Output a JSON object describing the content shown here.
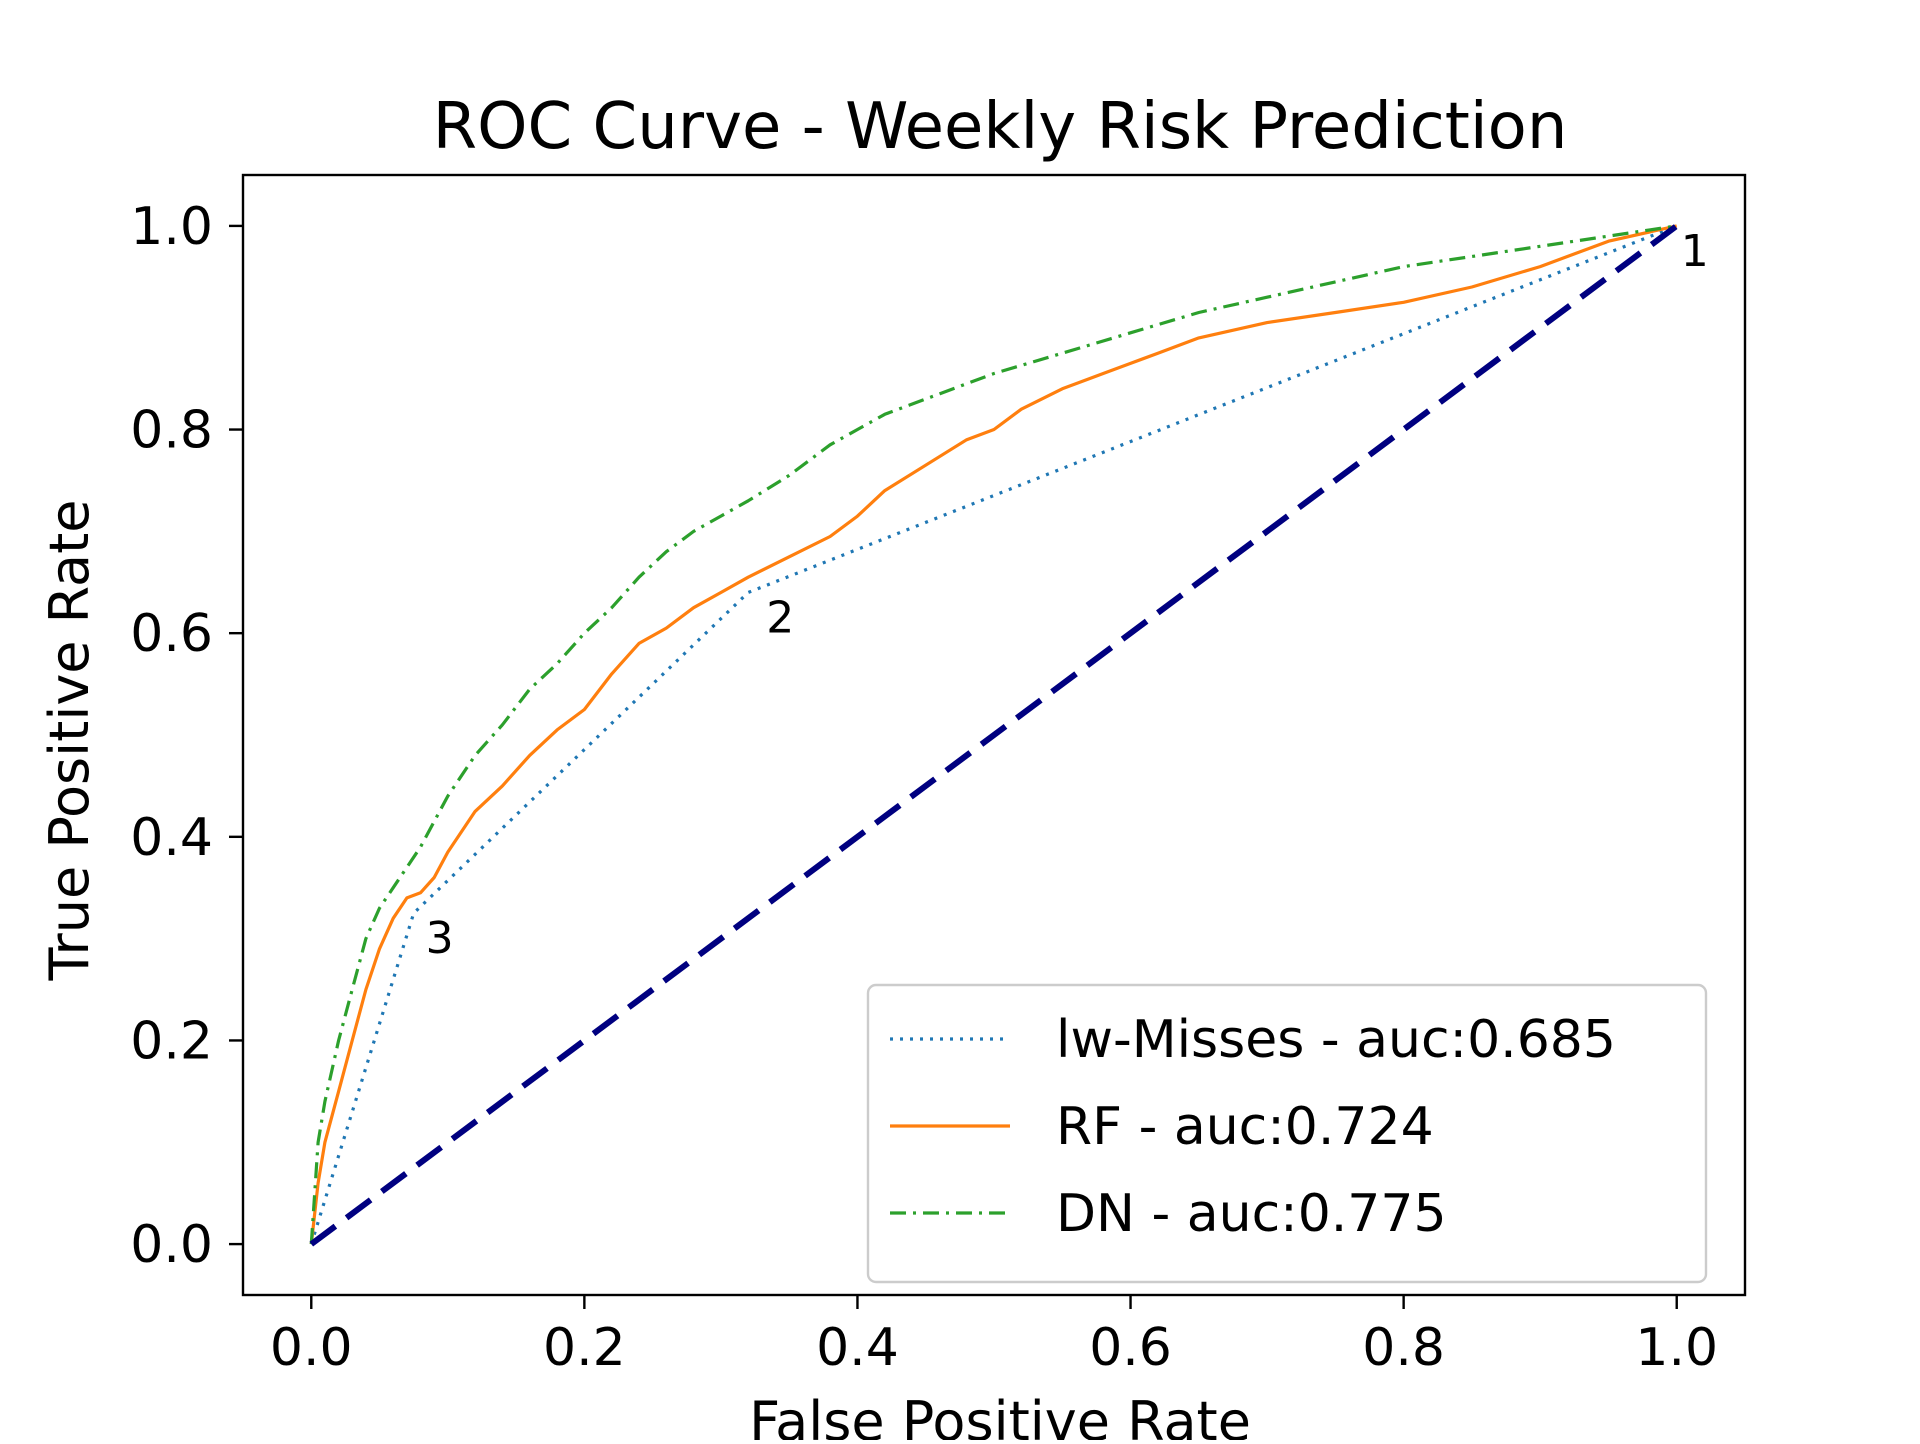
{
  "chart_data": {
    "type": "line",
    "title": "ROC Curve - Weekly Risk Prediction",
    "xlabel": "False Positive Rate",
    "ylabel": "True Positive Rate",
    "xlim": [
      -0.05,
      1.05
    ],
    "ylim": [
      -0.05,
      1.05
    ],
    "x_ticks": [
      "0.0",
      "0.2",
      "0.4",
      "0.6",
      "0.8",
      "1.0"
    ],
    "y_ticks": [
      "0.0",
      "0.2",
      "0.4",
      "0.6",
      "0.8",
      "1.0"
    ],
    "grid": false,
    "legend_position": "lower-right",
    "series": [
      {
        "name": "lw-Misses - auc:0.685",
        "color": "#1f77b4",
        "style": "dotted",
        "x": [
          0.0,
          0.075,
          0.32,
          1.0
        ],
        "y": [
          0.0,
          0.325,
          0.64,
          1.0
        ]
      },
      {
        "name": "RF - auc:0.724",
        "color": "#ff7f0e",
        "style": "solid",
        "x": [
          0.0,
          0.005,
          0.01,
          0.02,
          0.03,
          0.04,
          0.05,
          0.06,
          0.07,
          0.08,
          0.09,
          0.1,
          0.12,
          0.14,
          0.16,
          0.18,
          0.2,
          0.22,
          0.24,
          0.26,
          0.28,
          0.3,
          0.32,
          0.35,
          0.38,
          0.4,
          0.42,
          0.45,
          0.48,
          0.5,
          0.52,
          0.55,
          0.58,
          0.6,
          0.62,
          0.65,
          0.7,
          0.75,
          0.8,
          0.85,
          0.9,
          0.95,
          1.0
        ],
        "y": [
          0.0,
          0.06,
          0.1,
          0.15,
          0.2,
          0.25,
          0.29,
          0.32,
          0.34,
          0.345,
          0.36,
          0.385,
          0.425,
          0.45,
          0.48,
          0.505,
          0.525,
          0.56,
          0.59,
          0.605,
          0.625,
          0.64,
          0.655,
          0.675,
          0.695,
          0.715,
          0.74,
          0.765,
          0.79,
          0.8,
          0.82,
          0.84,
          0.855,
          0.865,
          0.875,
          0.89,
          0.905,
          0.915,
          0.925,
          0.94,
          0.96,
          0.985,
          1.0
        ]
      },
      {
        "name": "DN - auc:0.775",
        "color": "#2ca02c",
        "style": "dashdot",
        "x": [
          0.0,
          0.005,
          0.01,
          0.02,
          0.03,
          0.04,
          0.05,
          0.06,
          0.08,
          0.1,
          0.12,
          0.14,
          0.16,
          0.18,
          0.2,
          0.22,
          0.24,
          0.26,
          0.28,
          0.3,
          0.32,
          0.35,
          0.38,
          0.4,
          0.42,
          0.45,
          0.5,
          0.55,
          0.6,
          0.65,
          0.7,
          0.75,
          0.8,
          0.85,
          0.9,
          0.95,
          1.0
        ],
        "y": [
          0.0,
          0.1,
          0.14,
          0.2,
          0.25,
          0.3,
          0.33,
          0.35,
          0.39,
          0.44,
          0.48,
          0.51,
          0.545,
          0.57,
          0.6,
          0.625,
          0.655,
          0.68,
          0.7,
          0.715,
          0.73,
          0.755,
          0.785,
          0.8,
          0.815,
          0.83,
          0.855,
          0.875,
          0.895,
          0.915,
          0.93,
          0.945,
          0.96,
          0.97,
          0.98,
          0.99,
          1.0
        ]
      },
      {
        "name": "",
        "color": "#000080",
        "style": "dashed",
        "x": [
          0.0,
          1.0
        ],
        "y": [
          0.0,
          1.0
        ]
      }
    ],
    "annotations": [
      {
        "text": "1",
        "x": 1.0,
        "y": 1.0
      },
      {
        "text": "2",
        "x": 0.32,
        "y": 0.64
      },
      {
        "text": "3",
        "x": 0.075,
        "y": 0.325
      }
    ]
  }
}
